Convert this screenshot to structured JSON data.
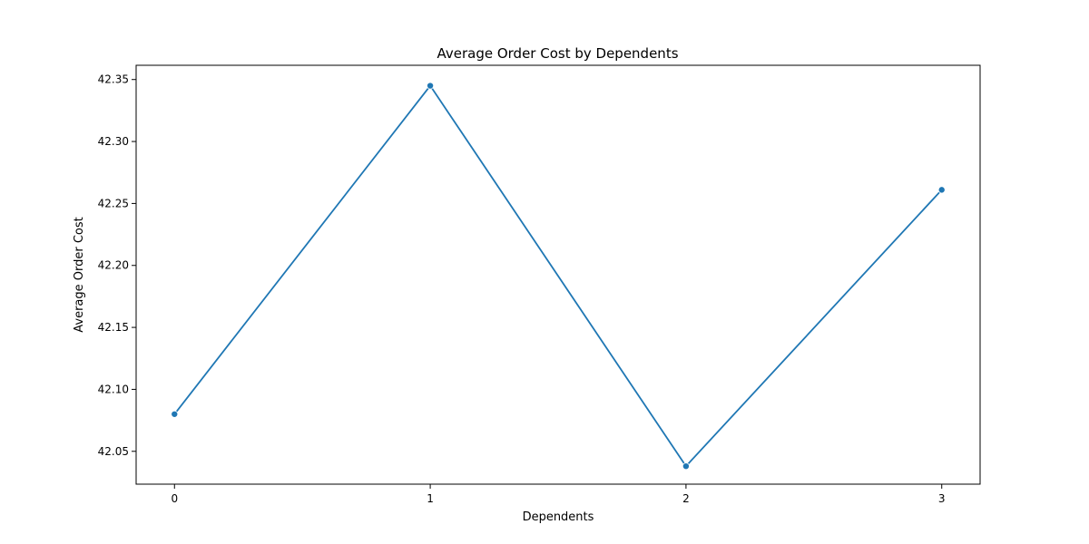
{
  "chart_data": {
    "type": "line",
    "title": "Average Order Cost by Dependents",
    "xlabel": "Dependents",
    "ylabel": "Average Order Cost",
    "x": [
      0,
      1,
      2,
      3
    ],
    "series": [
      {
        "values": [
          42.08,
          42.345,
          42.038,
          42.261
        ]
      }
    ],
    "xlim": [
      -0.15,
      3.15
    ],
    "ylim": [
      42.0235,
      42.3615
    ],
    "xticks": [
      "0",
      "1",
      "2",
      "3"
    ],
    "yticks": [
      "42.05",
      "42.10",
      "42.15",
      "42.20",
      "42.25",
      "42.30",
      "42.35"
    ],
    "grid": false,
    "line_color": "#1f77b4"
  }
}
